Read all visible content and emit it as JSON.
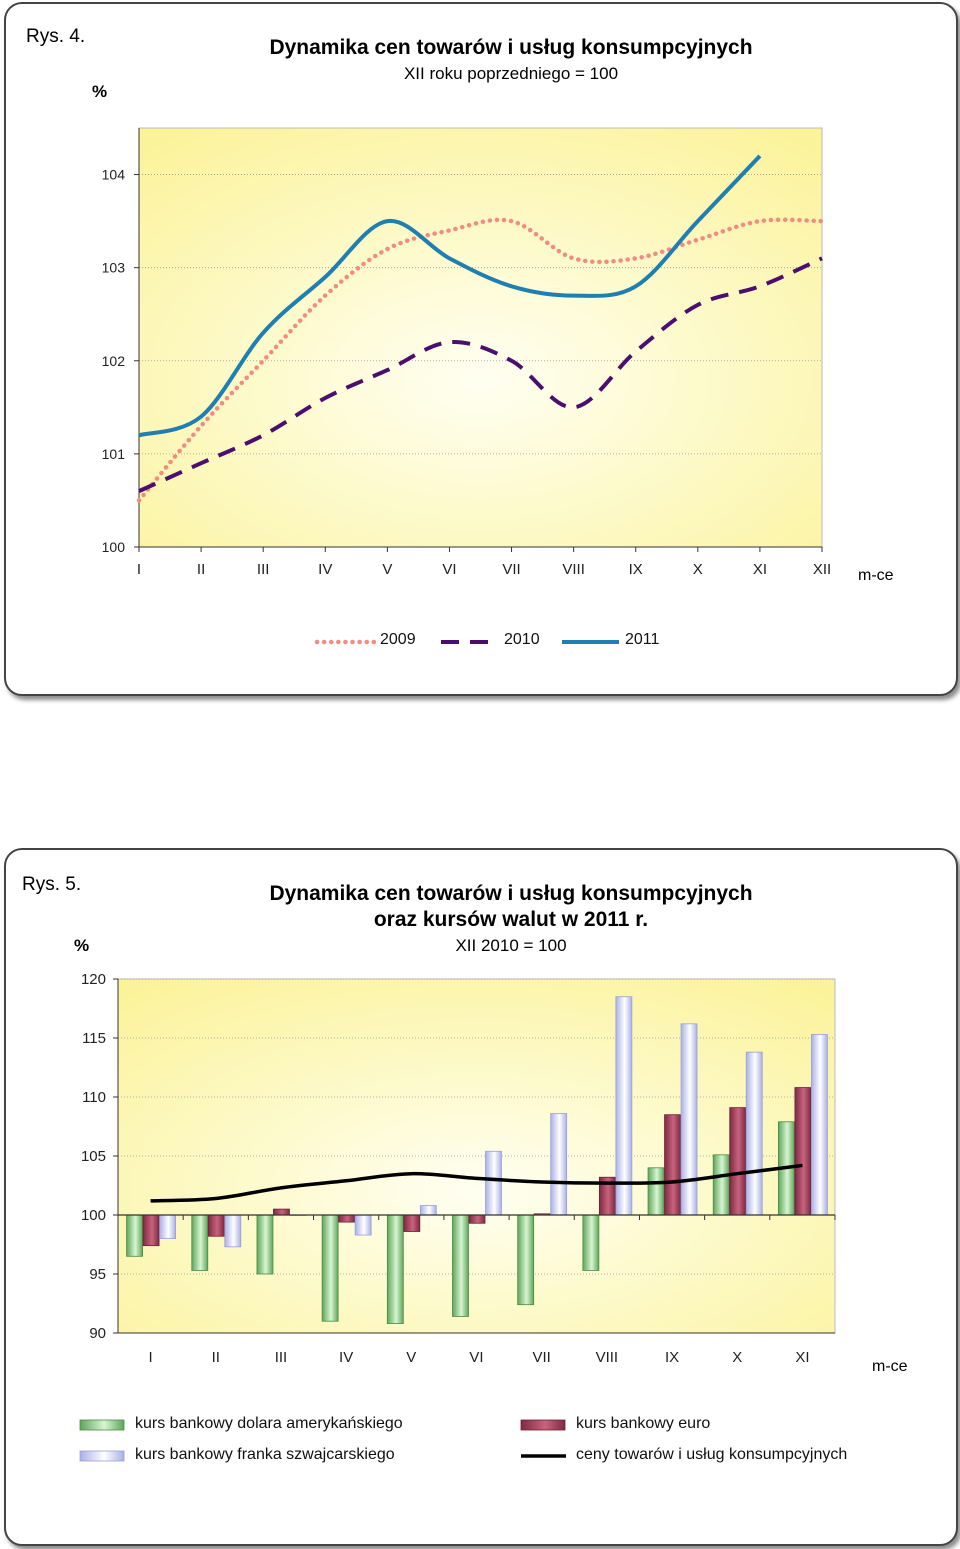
{
  "charts": [
    {
      "figure_label": "Rys. 4.",
      "unit": "%",
      "x_unit": "m-ce"
    },
    {
      "figure_label": "Rys. 5.",
      "unit": "%",
      "x_unit": "m-ce"
    }
  ],
  "chart_data": [
    {
      "type": "line",
      "title": "Dynamika cen towarów i usług konsumpcyjnych",
      "subtitle": "XII roku poprzedniego = 100",
      "ylabel": "%",
      "xlabel": "m-ce",
      "ylim": [
        100,
        104.5
      ],
      "yticks": [
        100,
        101,
        102,
        103,
        104
      ],
      "grid": true,
      "legend": "bottom",
      "categories": [
        "I",
        "II",
        "III",
        "IV",
        "V",
        "VI",
        "VII",
        "VIII",
        "IX",
        "X",
        "XI",
        "XII"
      ],
      "series": [
        {
          "name": "2009",
          "style": "dotted",
          "color": "#f28c82",
          "values": [
            100.5,
            101.3,
            102.0,
            102.7,
            103.2,
            103.4,
            103.5,
            103.1,
            103.1,
            103.3,
            103.5,
            103.5
          ]
        },
        {
          "name": "2010",
          "style": "dashed",
          "color": "#4b0e6e",
          "values": [
            100.6,
            100.9,
            101.2,
            101.6,
            101.9,
            102.2,
            102.0,
            101.5,
            102.1,
            102.6,
            102.8,
            103.1
          ]
        },
        {
          "name": "2011",
          "style": "solid",
          "color": "#1f7fb0",
          "values": [
            101.2,
            101.4,
            102.3,
            102.9,
            103.5,
            103.1,
            102.8,
            102.7,
            102.8,
            103.5,
            104.2,
            null
          ]
        }
      ]
    },
    {
      "type": "bar",
      "title": "Dynamika cen towarów i usług konsumpcyjnych",
      "title2": "oraz kursów walut w 2011 r.",
      "subtitle": "XII 2010 = 100",
      "ylabel": "%",
      "xlabel": "m-ce",
      "ylim": [
        90,
        120
      ],
      "yticks": [
        90,
        95,
        100,
        105,
        110,
        115,
        120
      ],
      "baseline": 100,
      "grid": true,
      "legend": "bottom",
      "categories": [
        "I",
        "II",
        "III",
        "IV",
        "V",
        "VI",
        "VII",
        "VIII",
        "IX",
        "X",
        "XI"
      ],
      "series": [
        {
          "name": "kurs bankowy dolara amerykańskiego",
          "kind": "bar",
          "color": "#9fd99a",
          "values": [
            96.5,
            95.3,
            95.0,
            91.0,
            90.8,
            91.4,
            92.4,
            95.3,
            104.0,
            105.1,
            107.9
          ]
        },
        {
          "name": "kurs bankowy euro",
          "kind": "bar",
          "color": "#a8465e",
          "values": [
            97.4,
            98.2,
            100.5,
            99.4,
            98.6,
            99.3,
            100.1,
            103.2,
            108.5,
            109.1,
            110.8
          ]
        },
        {
          "name": "kurs bankowy franka szwajcarskiego",
          "kind": "bar",
          "color": "#c5caf0",
          "values": [
            98.0,
            97.3,
            100.0,
            98.3,
            100.8,
            105.4,
            108.6,
            118.5,
            116.2,
            113.8,
            115.3
          ]
        },
        {
          "name": "ceny towarów i usług konsumpcyjnych",
          "kind": "line",
          "color": "#000000",
          "values": [
            101.2,
            101.4,
            102.3,
            102.9,
            103.5,
            103.1,
            102.8,
            102.7,
            102.8,
            103.5,
            104.2
          ]
        }
      ]
    }
  ]
}
